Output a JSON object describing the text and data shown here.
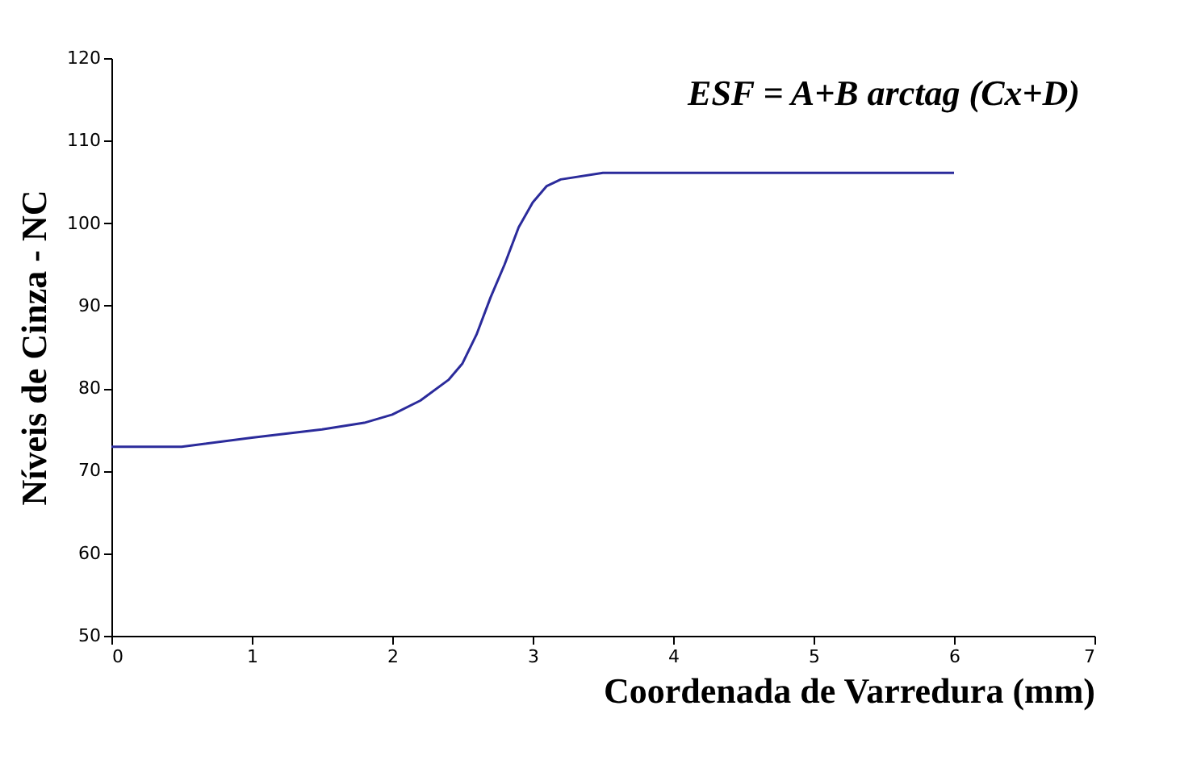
{
  "chart_data": {
    "type": "line",
    "xlabel": "Coordenada de Varredura (mm)",
    "ylabel": "Níveis de Cinza - NC",
    "annotations": [
      "ESF = A+B arctag (Cx+D)"
    ],
    "series": [
      {
        "color": "#2b2b9b",
        "x": [
          0,
          0.5,
          1,
          1.5,
          1.8,
          2,
          2.2,
          2.4,
          2.5,
          2.6,
          2.7,
          2.8,
          2.9,
          3.0,
          3.1,
          3.2,
          3.5,
          6
        ],
        "values": [
          72.9,
          72.9,
          74,
          75,
          75.8,
          76.8,
          78.5,
          81,
          83,
          86.5,
          91,
          95,
          99.5,
          102.5,
          104.5,
          105.3,
          106.1,
          106.1
        ]
      }
    ],
    "xlim": [
      0,
      7
    ],
    "xticks": [
      0,
      1,
      2,
      3,
      4,
      5,
      6,
      7
    ],
    "ylim": [
      50,
      120
    ],
    "yticks": [
      50,
      60,
      70,
      80,
      90,
      100,
      110,
      120
    ],
    "grid": false,
    "marker": "none",
    "line_style": "solid"
  }
}
